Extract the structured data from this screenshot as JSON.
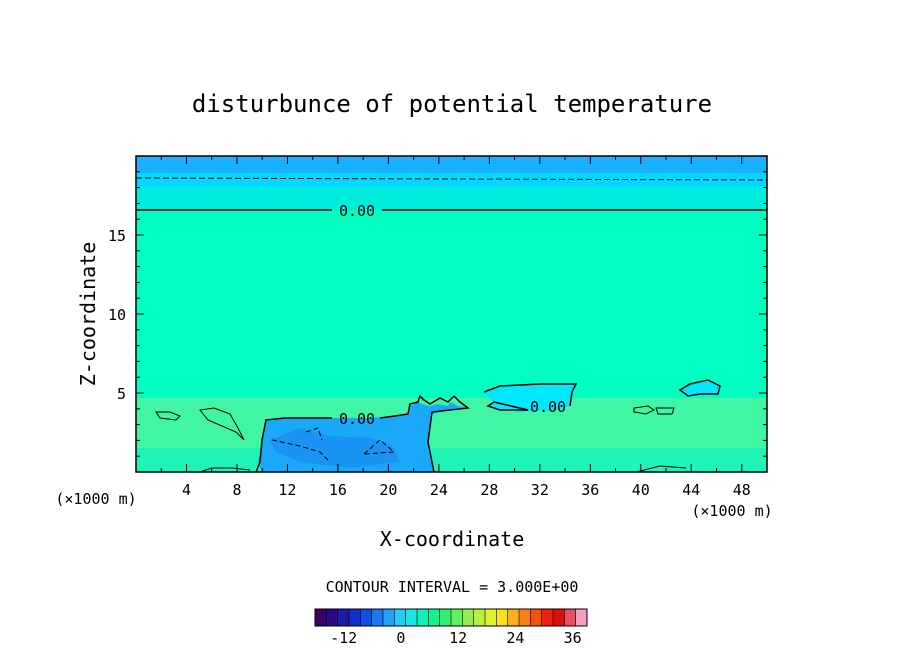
{
  "chart_data": {
    "type": "heatmap",
    "title": "disturbunce of potential temperature",
    "xlabel": "X-coordinate",
    "ylabel": "Z-coordinate",
    "x_unit_left": "(×1000 m)",
    "x_unit_right": "(×1000 m)",
    "xlim": [
      0,
      50
    ],
    "ylim": [
      0,
      20
    ],
    "x_ticks": [
      4,
      8,
      12,
      16,
      20,
      24,
      28,
      32,
      36,
      40,
      44,
      48
    ],
    "y_ticks": [
      5,
      10,
      15
    ],
    "contour_interval_text": "CONTOUR INTERVAL = 3.000E+00",
    "colorbar": {
      "min": -18,
      "max": 39,
      "step": 3,
      "ticks": [
        -12,
        0,
        12,
        24,
        36
      ],
      "colors": [
        "#3b0065",
        "#2a0a8a",
        "#1a1aa8",
        "#1030c8",
        "#1050e0",
        "#1a78f0",
        "#20a0f8",
        "#28c8f8",
        "#1ae8e0",
        "#10f0b8",
        "#18f090",
        "#30f070",
        "#60f060",
        "#90f050",
        "#b8f040",
        "#e0f030",
        "#f8e020",
        "#f8b020",
        "#f88018",
        "#f85010",
        "#f02010",
        "#d81010",
        "#e85060",
        "#f0a0c0"
      ]
    },
    "contour_labels": [
      "0.00",
      "0.00",
      "0.00"
    ],
    "field": {
      "background_value": 0,
      "upper_band_value": -3,
      "cold_pool": {
        "x_range": [
          10,
          24
        ],
        "z_range": [
          0,
          3.5
        ],
        "min_value": -6
      }
    },
    "colors": {
      "zero": "#00ffc0",
      "minus3": "#00e8ff",
      "minus6": "#1aa8f8",
      "top": "#18b0ff",
      "near_surface": "#40f6a4"
    }
  }
}
